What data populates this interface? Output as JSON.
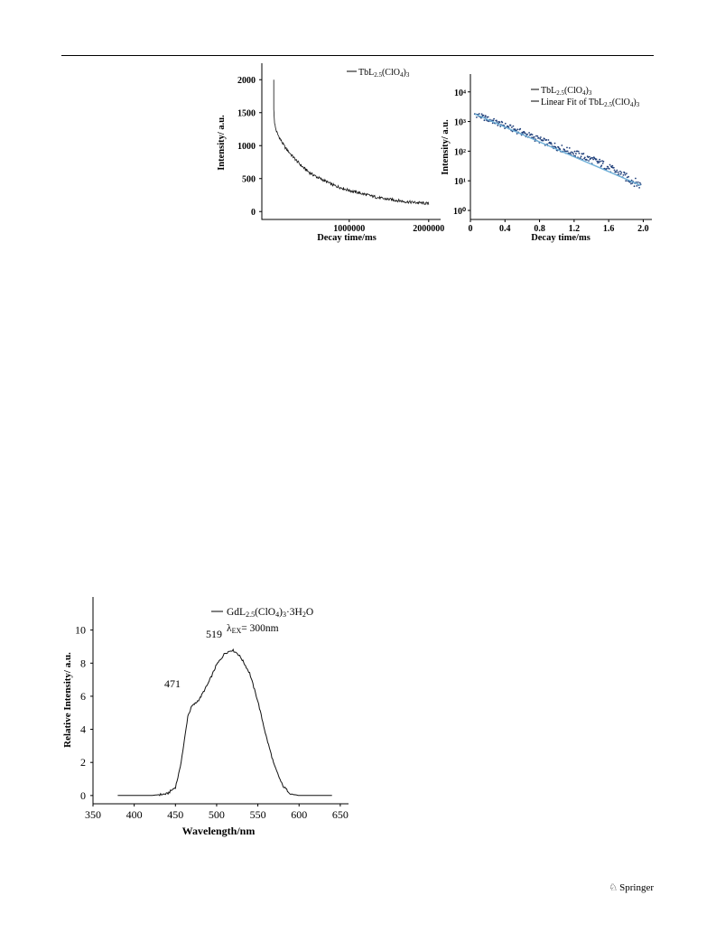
{
  "footer": {
    "publisher": "Springer"
  },
  "chart_data": [
    {
      "type": "line",
      "xlabel": "Decay time/ms",
      "ylabel": "Intensity/ a.u.",
      "xlim": [
        -100000,
        2150000
      ],
      "ylim": [
        -120,
        2250
      ],
      "xticks": [
        "1000000",
        "2000000"
      ],
      "yticks": [
        "0",
        "500",
        "1000",
        "1500",
        "2000"
      ],
      "series": [
        {
          "name": "TbL2.5(ClO4)3",
          "x": [
            50000,
            60000,
            75000,
            100000,
            150000,
            200000,
            300000,
            400000,
            500000,
            600000,
            700000,
            800000,
            900000,
            1000000,
            1100000,
            1200000,
            1300000,
            1400000,
            1500000,
            1600000,
            1700000,
            1800000,
            1900000,
            2000000
          ],
          "y": [
            2000,
            1350,
            1250,
            1170,
            1060,
            960,
            820,
            690,
            590,
            520,
            460,
            400,
            360,
            320,
            290,
            260,
            230,
            200,
            185,
            170,
            150,
            140,
            130,
            120
          ]
        }
      ]
    },
    {
      "type": "scatter",
      "xlabel": "Decay time/ms",
      "ylabel": "Intensity/ a.u.",
      "yscale": "log",
      "xlim": [
        0,
        2.1
      ],
      "ylim": [
        1,
        40000
      ],
      "xticks": [
        "0",
        "0.4",
        "0.8",
        "1.2",
        "1.6",
        "2.0"
      ],
      "yticks": [
        "10⁰",
        "10¹",
        "10²",
        "10³",
        "10⁴"
      ],
      "series": [
        {
          "name": "TbL2.5(ClO4)3",
          "x": [
            0.05,
            0.5,
            1.0,
            1.5,
            1.97
          ],
          "y": [
            1800,
            550,
            140,
            40,
            7
          ]
        },
        {
          "name": "Linear Fit of TbL2.5(ClO4)3",
          "x": [
            0.05,
            1.97
          ],
          "y": [
            1800,
            7
          ]
        }
      ]
    },
    {
      "type": "line",
      "xlabel": "Wavelength/nm",
      "ylabel": "Relative Intensity/ a.u.",
      "xlim": [
        350,
        660
      ],
      "ylim": [
        -0.5,
        12
      ],
      "xticks": [
        "350",
        "400",
        "450",
        "500",
        "550",
        "600",
        "650"
      ],
      "yticks": [
        "0",
        "2",
        "4",
        "6",
        "8",
        "10"
      ],
      "annotations": [
        "λEX= 300nm",
        "471",
        "519"
      ],
      "series": [
        {
          "name": "GdL2.5(ClO4)3·3H2O",
          "x": [
            380,
            400,
            420,
            440,
            450,
            455,
            460,
            465,
            470,
            475,
            480,
            490,
            500,
            510,
            519,
            525,
            530,
            540,
            550,
            560,
            570,
            580,
            590,
            600,
            620,
            640
          ],
          "y": [
            0,
            0,
            0,
            0.1,
            0.5,
            1.5,
            3.0,
            4.8,
            5.4,
            5.6,
            5.9,
            6.8,
            7.9,
            8.6,
            8.8,
            8.6,
            8.3,
            7.4,
            5.7,
            3.6,
            1.8,
            0.6,
            0.1,
            0,
            0,
            0
          ]
        }
      ]
    }
  ]
}
